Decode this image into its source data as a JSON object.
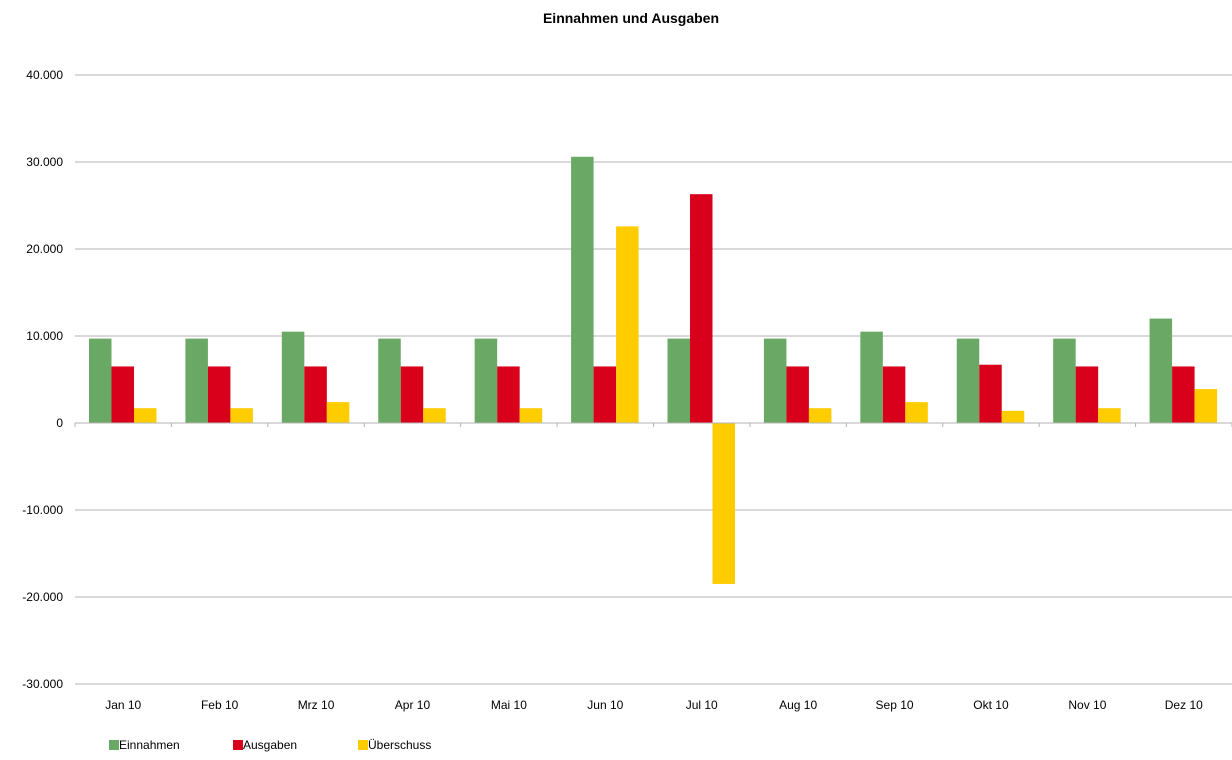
{
  "chart_data": {
    "type": "bar",
    "title": "Einnahmen und Ausgaben",
    "xlabel": "",
    "ylabel": "",
    "categories": [
      "Jan 10",
      "Feb 10",
      "Mrz 10",
      "Apr 10",
      "Mai 10",
      "Jun 10",
      "Jul 10",
      "Aug 10",
      "Sep 10",
      "Okt 10",
      "Nov 10",
      "Dez 10"
    ],
    "series": [
      {
        "name": "Einnahmen",
        "color": "#6aa965",
        "values": [
          9700,
          9700,
          10500,
          9700,
          9700,
          30600,
          9700,
          9700,
          10500,
          9700,
          9700,
          12000
        ]
      },
      {
        "name": "Ausgaben",
        "color": "#d9001b",
        "values": [
          6500,
          6500,
          6500,
          6500,
          6500,
          6500,
          26300,
          6500,
          6500,
          6700,
          6500,
          6500
        ]
      },
      {
        "name": "Überschuss",
        "color": "#ffcc00",
        "values": [
          1700,
          1700,
          2400,
          1700,
          1700,
          22600,
          -18500,
          1700,
          2400,
          1400,
          1700,
          3900
        ]
      }
    ],
    "ylim": [
      -30000,
      40000
    ],
    "yticks": [
      40000,
      30000,
      20000,
      10000,
      0,
      -10000,
      -20000,
      -30000
    ],
    "ytick_labels": [
      "40.000",
      "30.000",
      "20.000",
      "10.000",
      "0",
      "-10.000",
      "-20.000",
      "-30.000"
    ],
    "grid": true,
    "legend_position": "bottom-left",
    "gridline_color": "#b3b3b3",
    "axis_color": "#b3b3b3"
  }
}
